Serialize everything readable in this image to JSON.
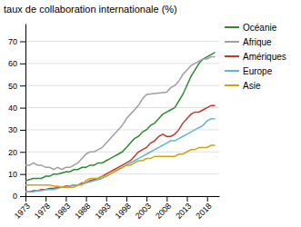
{
  "chart_data": {
    "type": "line",
    "title": "taux de collaboration internationale (%)",
    "xlim": [
      1973,
      2021
    ],
    "xticks": [
      1973,
      1978,
      1983,
      1988,
      1993,
      1998,
      2003,
      2008,
      2013,
      2018
    ],
    "ylim": [
      0,
      78
    ],
    "yticks": [
      0,
      10,
      20,
      30,
      40,
      50,
      60,
      70
    ],
    "grid": true,
    "legend": "right",
    "series": [
      {
        "name": "Océanie",
        "color": "#2e8b2e",
        "x": [
          1973,
          1974,
          1975,
          1976,
          1977,
          1978,
          1979,
          1980,
          1981,
          1982,
          1983,
          1984,
          1985,
          1986,
          1987,
          1988,
          1989,
          1990,
          1991,
          1992,
          1993,
          1994,
          1995,
          1996,
          1997,
          1998,
          1999,
          2000,
          2001,
          2002,
          2003,
          2004,
          2005,
          2006,
          2007,
          2008,
          2009,
          2010,
          2011,
          2012,
          2013,
          2014,
          2015,
          2016,
          2017,
          2018,
          2019,
          2020
        ],
        "values": [
          7,
          7.5,
          8,
          8,
          8,
          9,
          9,
          10,
          10,
          10.5,
          11,
          11,
          12,
          12,
          13,
          13,
          14,
          14,
          15,
          15,
          16,
          17,
          18,
          19,
          20,
          22,
          24,
          26,
          27,
          29,
          30,
          32,
          33,
          35,
          37,
          38,
          39,
          40,
          43,
          46,
          50,
          54,
          57,
          60,
          62,
          63,
          64,
          65
        ]
      },
      {
        "name": "Afrique",
        "color": "#a0a0a0",
        "x": [
          1973,
          1974,
          1975,
          1976,
          1977,
          1978,
          1979,
          1980,
          1981,
          1982,
          1983,
          1984,
          1985,
          1986,
          1987,
          1988,
          1989,
          1990,
          1991,
          1992,
          1993,
          1994,
          1995,
          1996,
          1997,
          1998,
          1999,
          2000,
          2001,
          2002,
          2003,
          2008,
          2009,
          2010,
          2011,
          2012,
          2013,
          2014,
          2015,
          2016,
          2017,
          2018,
          2019,
          2020
        ],
        "values": [
          14,
          14,
          15,
          14,
          14,
          13,
          13,
          12,
          13,
          12,
          13,
          13,
          14,
          15,
          17,
          19,
          20,
          20,
          21,
          22,
          24,
          26,
          28,
          30,
          32,
          35,
          37,
          39,
          41,
          44,
          46,
          47,
          49,
          50,
          52,
          55,
          57,
          59,
          60,
          61,
          62,
          62,
          63,
          63
        ]
      },
      {
        "name": "Amériques",
        "color": "#c0392b",
        "x": [
          1973,
          1974,
          1975,
          1976,
          1977,
          1978,
          1979,
          1980,
          1981,
          1982,
          1983,
          1984,
          1985,
          1986,
          1987,
          1988,
          1989,
          1990,
          1991,
          1992,
          1993,
          1994,
          1995,
          1996,
          1997,
          1998,
          1999,
          2000,
          2001,
          2002,
          2003,
          2004,
          2005,
          2006,
          2007,
          2008,
          2009,
          2010,
          2011,
          2012,
          2013,
          2014,
          2015,
          2016,
          2017,
          2018,
          2019,
          2020
        ],
        "values": [
          2,
          2,
          2.5,
          2.5,
          3,
          3,
          3.5,
          3.5,
          4,
          4,
          4.5,
          4.5,
          5,
          5,
          6,
          6,
          7,
          7.5,
          8,
          9,
          10,
          11,
          12,
          13,
          14,
          15,
          16,
          18,
          20,
          21,
          22,
          24,
          25,
          27,
          28,
          27,
          27,
          28,
          30,
          33,
          35,
          37,
          38,
          38,
          39,
          40,
          41,
          41
        ]
      },
      {
        "name": "Europe",
        "color": "#5bb8d4",
        "x": [
          1973,
          1974,
          1975,
          1976,
          1977,
          1978,
          1979,
          1980,
          1981,
          1982,
          1983,
          1984,
          1985,
          1986,
          1987,
          1988,
          1989,
          1990,
          1991,
          1992,
          1993,
          1994,
          1995,
          1996,
          1997,
          1998,
          1999,
          2000,
          2001,
          2002,
          2003,
          2004,
          2005,
          2006,
          2007,
          2008,
          2009,
          2010,
          2011,
          2012,
          2013,
          2014,
          2015,
          2016,
          2017,
          2018,
          2019,
          2020
        ],
        "values": [
          2,
          2,
          2,
          2.5,
          2.5,
          3,
          3,
          3,
          3.5,
          4,
          4,
          4.5,
          5,
          5,
          5.5,
          6,
          6.5,
          7,
          7.5,
          8,
          9,
          10,
          11,
          12,
          13,
          14,
          15,
          16,
          17,
          18,
          19,
          20,
          21,
          22,
          23,
          24,
          25,
          25,
          26,
          27,
          28,
          29,
          30,
          31,
          32,
          34,
          35,
          35
        ]
      },
      {
        "name": "Asie",
        "color": "#d4a017",
        "x": [
          1973,
          1974,
          1975,
          1976,
          1977,
          1978,
          1979,
          1980,
          1981,
          1982,
          1983,
          1984,
          1985,
          1986,
          1987,
          1988,
          1989,
          1990,
          1991,
          1992,
          1993,
          1994,
          1995,
          1996,
          1997,
          1998,
          1999,
          2000,
          2001,
          2002,
          2003,
          2004,
          2005,
          2006,
          2007,
          2008,
          2009,
          2010,
          2011,
          2012,
          2013,
          2014,
          2015,
          2016,
          2017,
          2018,
          2019,
          2020
        ],
        "values": [
          5,
          5,
          5,
          5,
          5,
          5,
          5,
          4.5,
          4.5,
          4,
          4,
          4,
          4,
          5,
          5,
          7,
          8,
          8,
          8,
          9,
          9,
          10,
          11,
          12,
          13,
          14,
          14,
          15,
          16,
          16,
          17,
          17,
          18,
          18,
          18,
          18,
          18,
          18,
          19,
          19,
          20,
          21,
          21,
          22,
          22,
          22,
          23,
          23
        ]
      }
    ]
  }
}
